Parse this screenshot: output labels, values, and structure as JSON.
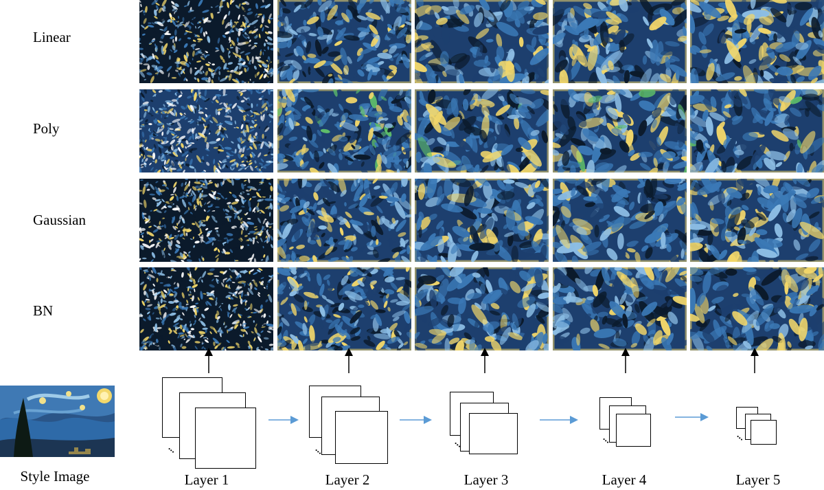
{
  "rows": [
    "Linear",
    "Poly",
    "Gaussian",
    "BN"
  ],
  "layers": [
    "Layer 1",
    "Layer 2",
    "Layer 3",
    "Layer 4",
    "Layer 5"
  ],
  "style_label": "Style Image",
  "colors": {
    "deep_blue": "#1d3f6e",
    "mid_blue": "#3b79b6",
    "light_blue": "#8cbde4",
    "yellow": "#f2d76a",
    "dark": "#0b1a2b",
    "green": "#5fbf6a",
    "arrow_blue": "#5b9bd5"
  }
}
